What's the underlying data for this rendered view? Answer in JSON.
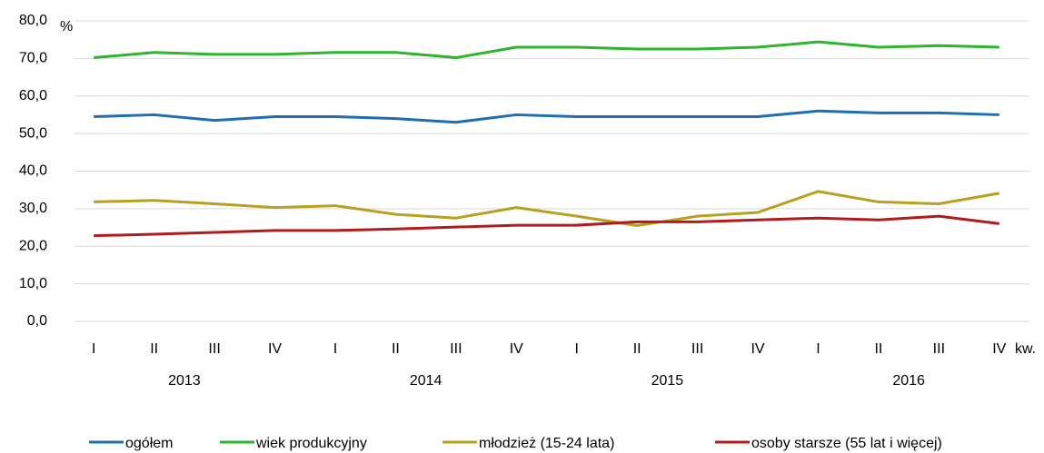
{
  "chart_data": {
    "type": "line",
    "y_unit": "%",
    "x_unit": "kw.",
    "categories": [
      "I",
      "II",
      "III",
      "IV",
      "I",
      "II",
      "III",
      "IV",
      "I",
      "II",
      "III",
      "IV",
      "I",
      "II",
      "III",
      "IV"
    ],
    "groups": [
      "2013",
      "2014",
      "2015",
      "2016"
    ],
    "series": [
      {
        "name": "ogółem",
        "color": "#1f6fb0",
        "values": [
          54.5,
          55,
          53.5,
          54.5,
          54.5,
          54,
          53,
          55,
          54.5,
          54.5,
          54.5,
          54.5,
          56,
          55.5,
          55.5,
          55
        ]
      },
      {
        "name": "wiek produkcyjny",
        "color": "#2db52d",
        "values": [
          70.2,
          71.6,
          71.1,
          71.1,
          71.6,
          71.6,
          70.2,
          73,
          73,
          72.5,
          72.5,
          73,
          74.4,
          73,
          73.4,
          73
        ]
      },
      {
        "name": "młodzież (15-24 lata)",
        "color": "#b8a020",
        "values": [
          31.8,
          32.2,
          31.3,
          30.3,
          30.8,
          28.5,
          27.5,
          30.3,
          28,
          25.5,
          28,
          29,
          34.6,
          31.8,
          31.3,
          34.1
        ]
      },
      {
        "name": "osoby starsze (55 lat i więcej)",
        "color": "#b01c1c",
        "values": [
          22.8,
          23.2,
          23.7,
          24.2,
          24.2,
          24.6,
          25.1,
          25.6,
          25.6,
          26.5,
          26.5,
          27,
          27.5,
          27,
          28,
          26
        ]
      }
    ],
    "ylim": [
      0,
      80
    ],
    "yticks": [
      {
        "value": 0,
        "label": "0,0"
      },
      {
        "value": 10,
        "label": "10,0"
      },
      {
        "value": 20,
        "label": "20,0"
      },
      {
        "value": 30,
        "label": "30,0"
      },
      {
        "value": 40,
        "label": "40,0"
      },
      {
        "value": 50,
        "label": "50,0"
      },
      {
        "value": 60,
        "label": "60,0"
      },
      {
        "value": 70,
        "label": "70,0"
      },
      {
        "value": 80,
        "label": "80,0"
      }
    ],
    "grid": true
  }
}
